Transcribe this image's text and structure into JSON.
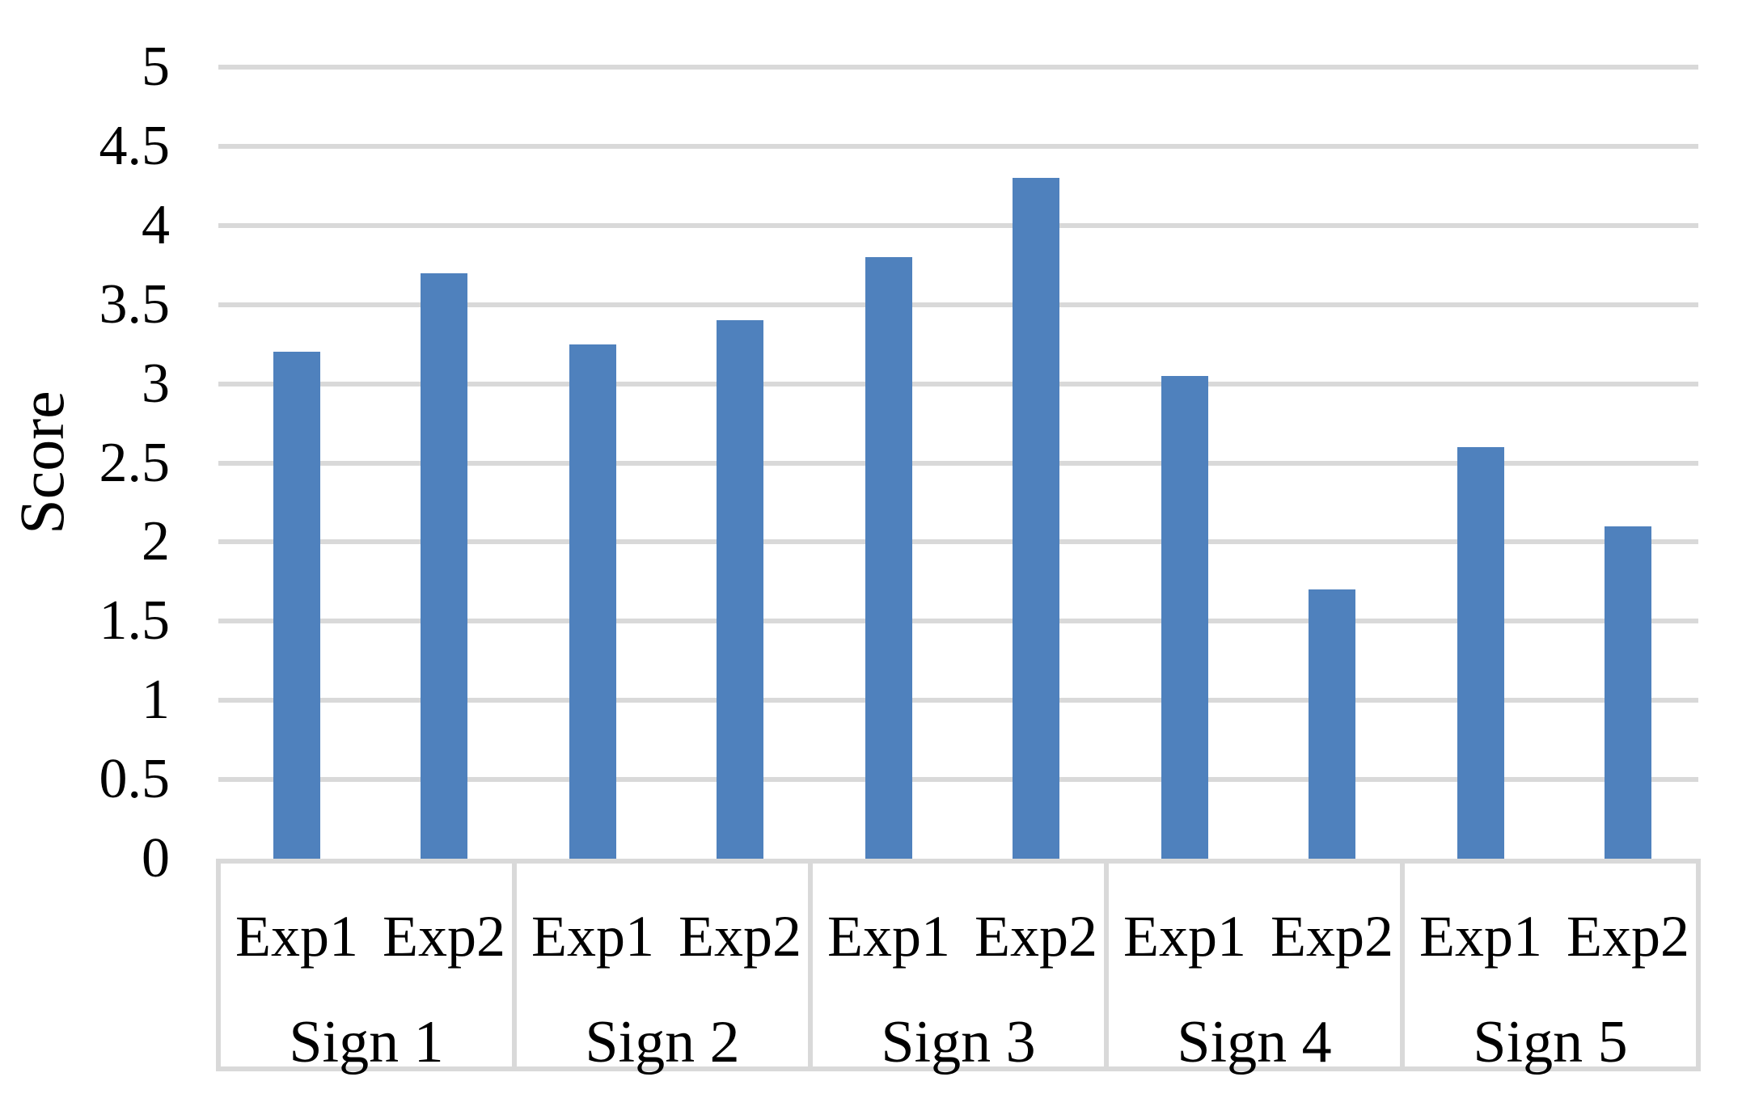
{
  "chart_data": {
    "type": "bar",
    "title": "",
    "ylabel": "Score",
    "ylim": [
      0,
      5
    ],
    "ytick_step": 0.5,
    "yticks": [
      "0",
      "0.5",
      "1",
      "1.5",
      "2",
      "2.5",
      "3",
      "3.5",
      "4",
      "4.5",
      "5"
    ],
    "grid": true,
    "legend_position": "none",
    "sub_categories": [
      "Exp1",
      "Exp2"
    ],
    "categories": [
      "Sign 1",
      "Sign 2",
      "Sign 3",
      "Sign 4",
      "Sign 5"
    ],
    "groups": [
      {
        "label": "Sign 1",
        "bars": [
          {
            "label": "Exp1",
            "value": 3.2
          },
          {
            "label": "Exp2",
            "value": 3.7
          }
        ]
      },
      {
        "label": "Sign 2",
        "bars": [
          {
            "label": "Exp1",
            "value": 3.25
          },
          {
            "label": "Exp2",
            "value": 3.4
          }
        ]
      },
      {
        "label": "Sign 3",
        "bars": [
          {
            "label": "Exp1",
            "value": 3.8
          },
          {
            "label": "Exp2",
            "value": 4.3
          }
        ]
      },
      {
        "label": "Sign 4",
        "bars": [
          {
            "label": "Exp1",
            "value": 3.05
          },
          {
            "label": "Exp2",
            "value": 1.7
          }
        ]
      },
      {
        "label": "Sign 5",
        "bars": [
          {
            "label": "Exp1",
            "value": 2.6
          },
          {
            "label": "Exp2",
            "value": 2.1
          }
        ]
      }
    ],
    "bar_color": "#4F81BD",
    "gridline_color": "#D9D9D9",
    "text_color": "#000000",
    "background_color": "#FFFFFF"
  }
}
